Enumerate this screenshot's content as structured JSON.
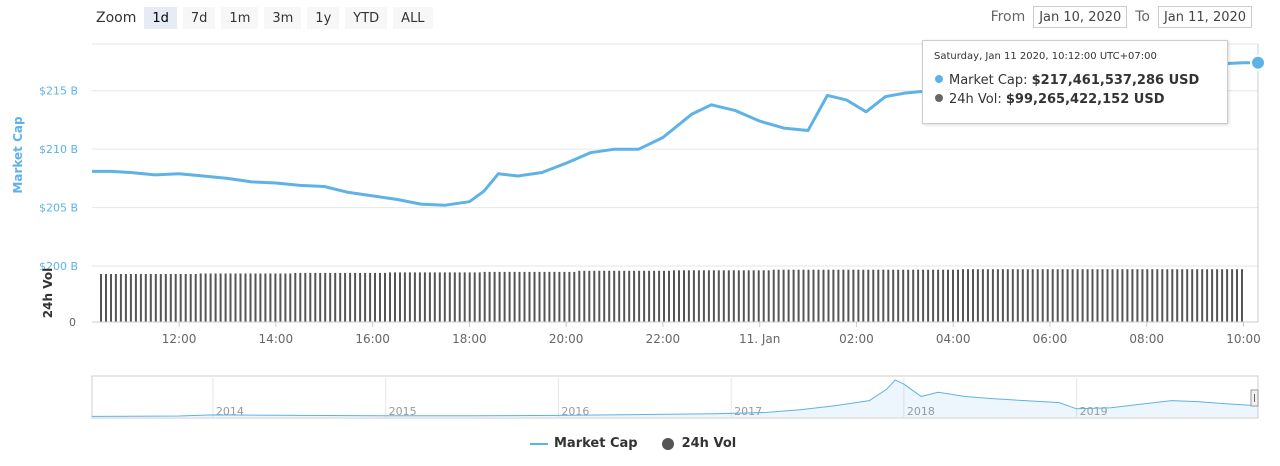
{
  "zoom": {
    "label": "Zoom",
    "buttons": [
      "1d",
      "7d",
      "1m",
      "3m",
      "1y",
      "YTD",
      "ALL"
    ],
    "active": "1d"
  },
  "range": {
    "from_label": "From",
    "from_value": "Jan 10, 2020",
    "to_label": "To",
    "to_value": "Jan 11, 2020"
  },
  "tooltip": {
    "title": "Saturday, Jan 11 2020, 10:12:00 UTC+07:00",
    "market_cap_label": "Market Cap:",
    "market_cap_value": "$217,461,537,286 USD",
    "vol_label": "24h Vol:",
    "vol_value": "$99,265,422,152 USD"
  },
  "legend": {
    "market_cap": "Market Cap",
    "vol": "24h Vol"
  },
  "colors": {
    "market_cap": "#5fb2e6",
    "vol": "#555555",
    "grid": "#e6e6e6",
    "axis_text": "#666666"
  },
  "chart_data": [
    {
      "type": "line",
      "ylabel": "Market Cap",
      "yticks": [
        "$200 B",
        "$205 B",
        "$210 B",
        "$215 B"
      ],
      "ytick_values": [
        200,
        205,
        210,
        215
      ],
      "ylim": [
        200,
        219
      ],
      "x_labels": [
        "12:00",
        "14:00",
        "16:00",
        "18:00",
        "20:00",
        "22:00",
        "11. Jan",
        "02:00",
        "04:00",
        "06:00",
        "08:00",
        "10:00"
      ],
      "x_hours": [
        12,
        14,
        16,
        18,
        20,
        22,
        24,
        26,
        28,
        30,
        32,
        34
      ],
      "xlim_hours": [
        10.2,
        34.3
      ],
      "series": [
        {
          "name": "Market Cap",
          "x_hours": [
            10.2,
            10.6,
            11.0,
            11.5,
            12.0,
            12.5,
            13.0,
            13.5,
            14.0,
            14.5,
            15.0,
            15.5,
            16.0,
            16.5,
            17.0,
            17.5,
            18.0,
            18.3,
            18.6,
            19.0,
            19.5,
            20.0,
            20.5,
            21.0,
            21.5,
            22.0,
            22.3,
            22.6,
            23.0,
            23.5,
            24.0,
            24.5,
            25.0,
            25.4,
            25.8,
            26.2,
            26.6,
            27.0,
            27.5,
            28.0,
            28.5,
            29.0,
            29.5,
            30.0,
            30.5,
            31.0,
            31.5,
            32.0,
            32.5,
            33.0,
            33.5,
            34.0,
            34.3
          ],
          "values": [
            208.1,
            208.1,
            208.0,
            207.8,
            207.9,
            207.7,
            207.5,
            207.2,
            207.1,
            206.9,
            206.8,
            206.3,
            206.0,
            205.7,
            205.3,
            205.2,
            205.5,
            206.4,
            207.9,
            207.7,
            208.0,
            208.8,
            209.7,
            210.0,
            210.0,
            211.0,
            212.0,
            213.0,
            213.8,
            213.3,
            212.4,
            211.8,
            211.6,
            214.6,
            214.2,
            213.2,
            214.5,
            214.8,
            215.0,
            215.0,
            215.2,
            215.5,
            215.7,
            215.9,
            216.2,
            216.5,
            216.7,
            216.9,
            217.1,
            217.3,
            217.3,
            217.4,
            217.4
          ]
        }
      ]
    },
    {
      "type": "bar",
      "ylabel": "24h Vol",
      "yticks": [
        "0"
      ],
      "ylim": [
        0,
        105
      ],
      "x_hours_range": [
        10.2,
        34.3
      ],
      "series": [
        {
          "name": "24h Vol",
          "values_billion_usd": [
            90,
            91,
            92,
            93,
            94,
            96,
            97,
            98,
            98,
            99,
            99,
            99
          ]
        }
      ]
    },
    {
      "type": "area",
      "x_labels": [
        "2014",
        "2015",
        "2016",
        "2017",
        "2018",
        "2019"
      ],
      "x_years": [
        2014,
        2015,
        2016,
        2017,
        2018,
        2019
      ],
      "xlim_years": [
        2013.3,
        2020.05
      ],
      "series": [
        {
          "name": "Market Cap",
          "x_years": [
            2013.3,
            2013.8,
            2014.0,
            2014.5,
            2015.0,
            2015.5,
            2016.0,
            2016.5,
            2016.9,
            2017.2,
            2017.4,
            2017.6,
            2017.8,
            2017.9,
            2017.95,
            2018.0,
            2018.05,
            2018.1,
            2018.2,
            2018.35,
            2018.5,
            2018.7,
            2018.9,
            2019.0,
            2019.2,
            2019.4,
            2019.55,
            2019.7,
            2019.85,
            2020.05
          ],
          "values_relative": [
            0.3,
            0.5,
            1.0,
            0.8,
            0.6,
            0.6,
            0.8,
            1.2,
            1.6,
            2.2,
            3.5,
            5.5,
            8.0,
            13.5,
            18.0,
            16.0,
            13.0,
            10.0,
            12.0,
            10.0,
            9.0,
            8.0,
            7.0,
            4.0,
            4.5,
            6.5,
            8.0,
            7.5,
            6.5,
            5.5
          ]
        }
      ]
    }
  ]
}
